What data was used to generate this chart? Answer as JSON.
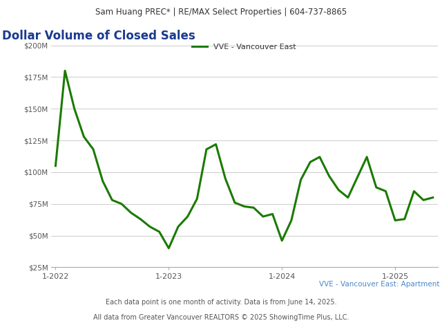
{
  "header": "Sam Huang PREC* | RE/MAX Select Properties | 604-737-8865",
  "title": "Dollar Volume of Closed Sales",
  "legend_label": "VVE - Vancouver East",
  "subtitle": "VVE - Vancouver East: Apartment",
  "footer1": "Each data point is one month of activity. Data is from June 14, 2025.",
  "footer2": "All data from Greater Vancouver REALTORS © 2025 ShowingTime Plus, LLC.",
  "line_color": "#1a7a00",
  "line_width": 2.2,
  "ylim": [
    25000000,
    207000000
  ],
  "yticks": [
    25000000,
    50000000,
    75000000,
    100000000,
    125000000,
    150000000,
    175000000,
    200000000
  ],
  "ytick_labels": [
    "$25M",
    "$50M",
    "$75M",
    "$100M",
    "$125M",
    "$150M",
    "$175M",
    "$200M"
  ],
  "values": [
    105000000,
    180000000,
    150000000,
    128000000,
    118000000,
    93000000,
    78000000,
    75000000,
    68000000,
    63000000,
    57000000,
    53000000,
    40000000,
    57000000,
    65000000,
    79000000,
    118000000,
    122000000,
    95000000,
    76000000,
    73000000,
    72000000,
    65000000,
    67000000,
    46000000,
    62000000,
    94000000,
    108000000,
    112000000,
    97000000,
    86000000,
    80000000,
    96000000,
    112000000,
    88000000,
    85000000,
    62000000,
    63000000,
    85000000,
    78000000,
    80000000
  ],
  "xtick_positions": [
    0,
    12,
    24,
    36
  ],
  "xtick_labels": [
    "1-2022",
    "1-2023",
    "1-2024",
    "1-2025"
  ],
  "background_color": "#ffffff",
  "header_bg": "#eeeeee",
  "grid_color": "#cccccc",
  "title_color": "#1a3a8f",
  "subtitle_color": "#4a86c8",
  "text_color": "#555555"
}
